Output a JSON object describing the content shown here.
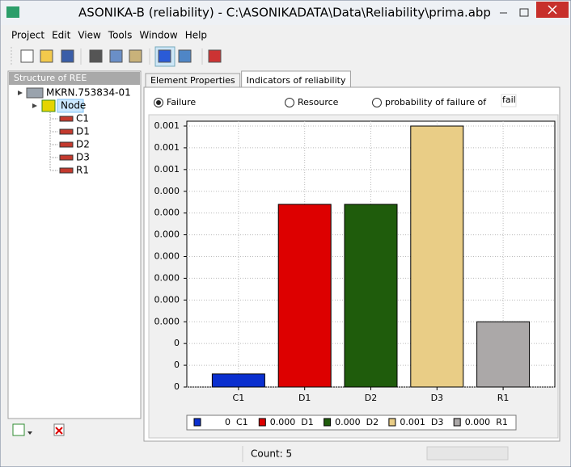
{
  "window": {
    "title": "ASONIKA-B (reliability) - C:\\ASONIKADATA\\Data\\Reliability\\prima.abp"
  },
  "menu": [
    "Project",
    "Edit",
    "View",
    "Tools",
    "Window",
    "Help"
  ],
  "tree": {
    "header": "Structure of REE",
    "root": "MKRN.753834-01",
    "node": "Node",
    "children": [
      "C1",
      "D1",
      "D2",
      "D3",
      "R1"
    ]
  },
  "tabs": [
    "Element Properties",
    "Indicators of reliability"
  ],
  "active_tab": 1,
  "options": [
    "Failure",
    "Resource",
    "probability of failure of"
  ],
  "selected_option": 0,
  "field": "fail",
  "chart_data": {
    "type": "bar",
    "categories": [
      "C1",
      "D1",
      "D2",
      "D3",
      "R1"
    ],
    "values": [
      3e-05,
      0.00042,
      0.00042,
      0.0006,
      0.00015
    ],
    "value_labels": [
      "0",
      "0.000",
      "0.000",
      "0.001",
      "0.000"
    ],
    "colors": [
      "#0a2fcf",
      "#dd0000",
      "#1f5c0c",
      "#e9cd86",
      "#aba8a8"
    ],
    "ylim": [
      0,
      0.0006
    ],
    "yticks": [
      {
        "value": 0,
        "label": "0"
      },
      {
        "value": 5e-05,
        "label": "0"
      },
      {
        "value": 0.0001,
        "label": "0"
      },
      {
        "value": 0.00015,
        "label": "0.000"
      },
      {
        "value": 0.0002,
        "label": "0.000"
      },
      {
        "value": 0.00025,
        "label": "0.000"
      },
      {
        "value": 0.0003,
        "label": "0.000"
      },
      {
        "value": 0.00035,
        "label": "0.000"
      },
      {
        "value": 0.0004,
        "label": "0.000"
      },
      {
        "value": 0.00045,
        "label": "0.000"
      },
      {
        "value": 0.0005,
        "label": "0.001"
      },
      {
        "value": 0.00055,
        "label": "0.001"
      },
      {
        "value": 0.0006,
        "label": "0.001"
      }
    ],
    "grid": true
  },
  "status": {
    "count": "Count: 5"
  }
}
